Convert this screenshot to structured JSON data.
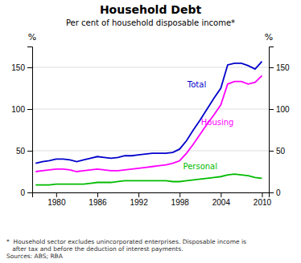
{
  "chart_data": {
    "type": "line",
    "title": "Household Debt",
    "subtitle": "Per cent of household disposable income*",
    "ylabel": "%",
    "y2label": "%",
    "footnote": "*  Household sector excludes unincorporated enterprises. Disposable income is\n   after tax and before the deduction of interest payments.\nSources: ABS; RBA",
    "x": [
      1977,
      1978,
      1979,
      1980,
      1981,
      1982,
      1983,
      1984,
      1985,
      1986,
      1987,
      1988,
      1989,
      1990,
      1991,
      1992,
      1993,
      1994,
      1995,
      1996,
      1997,
      1998,
      1999,
      2000,
      2001,
      2002,
      2003,
      2004,
      2005,
      2006,
      2007,
      2008,
      2009,
      2010
    ],
    "series": [
      {
        "name": "Total",
        "color": "#0000cc",
        "values": [
          35,
          37,
          38,
          40,
          40,
          39,
          37,
          39,
          41,
          43,
          42,
          41,
          42,
          44,
          44,
          45,
          46,
          47,
          47,
          47,
          48,
          52,
          62,
          75,
          87,
          100,
          113,
          125,
          153,
          155,
          155,
          152,
          148,
          157
        ]
      },
      {
        "name": "Housing",
        "color": "#ff00ff",
        "values": [
          25,
          26,
          27,
          28,
          28,
          27,
          25,
          26,
          27,
          28,
          27,
          26,
          26,
          27,
          28,
          29,
          30,
          31,
          32,
          33,
          35,
          38,
          47,
          58,
          70,
          82,
          93,
          105,
          130,
          133,
          133,
          130,
          132,
          140
        ]
      },
      {
        "name": "Personal",
        "color": "#00bb00",
        "values": [
          9,
          9,
          9,
          10,
          10,
          10,
          10,
          10,
          11,
          12,
          12,
          12,
          13,
          14,
          14,
          14,
          14,
          14,
          14,
          14,
          13,
          13,
          14,
          15,
          16,
          17,
          18,
          19,
          21,
          22,
          21,
          20,
          18,
          17
        ]
      }
    ],
    "annotations": [
      {
        "text": "Total",
        "x": 2000.5,
        "y": 126
      },
      {
        "text": "Housing",
        "x": 2003.5,
        "y": 81
      },
      {
        "text": "Personal",
        "x": 2001.0,
        "y": 28
      }
    ],
    "xlim": [
      1976.5,
      2011.0
    ],
    "xticks": [
      1980,
      1986,
      1992,
      1998,
      2004,
      2010
    ],
    "ylim": [
      0,
      175
    ],
    "yticks": [
      0,
      50,
      100,
      150
    ],
    "y2lim": [
      0,
      175
    ],
    "y2ticks": [
      0,
      50,
      100,
      150
    ],
    "grid": true
  }
}
